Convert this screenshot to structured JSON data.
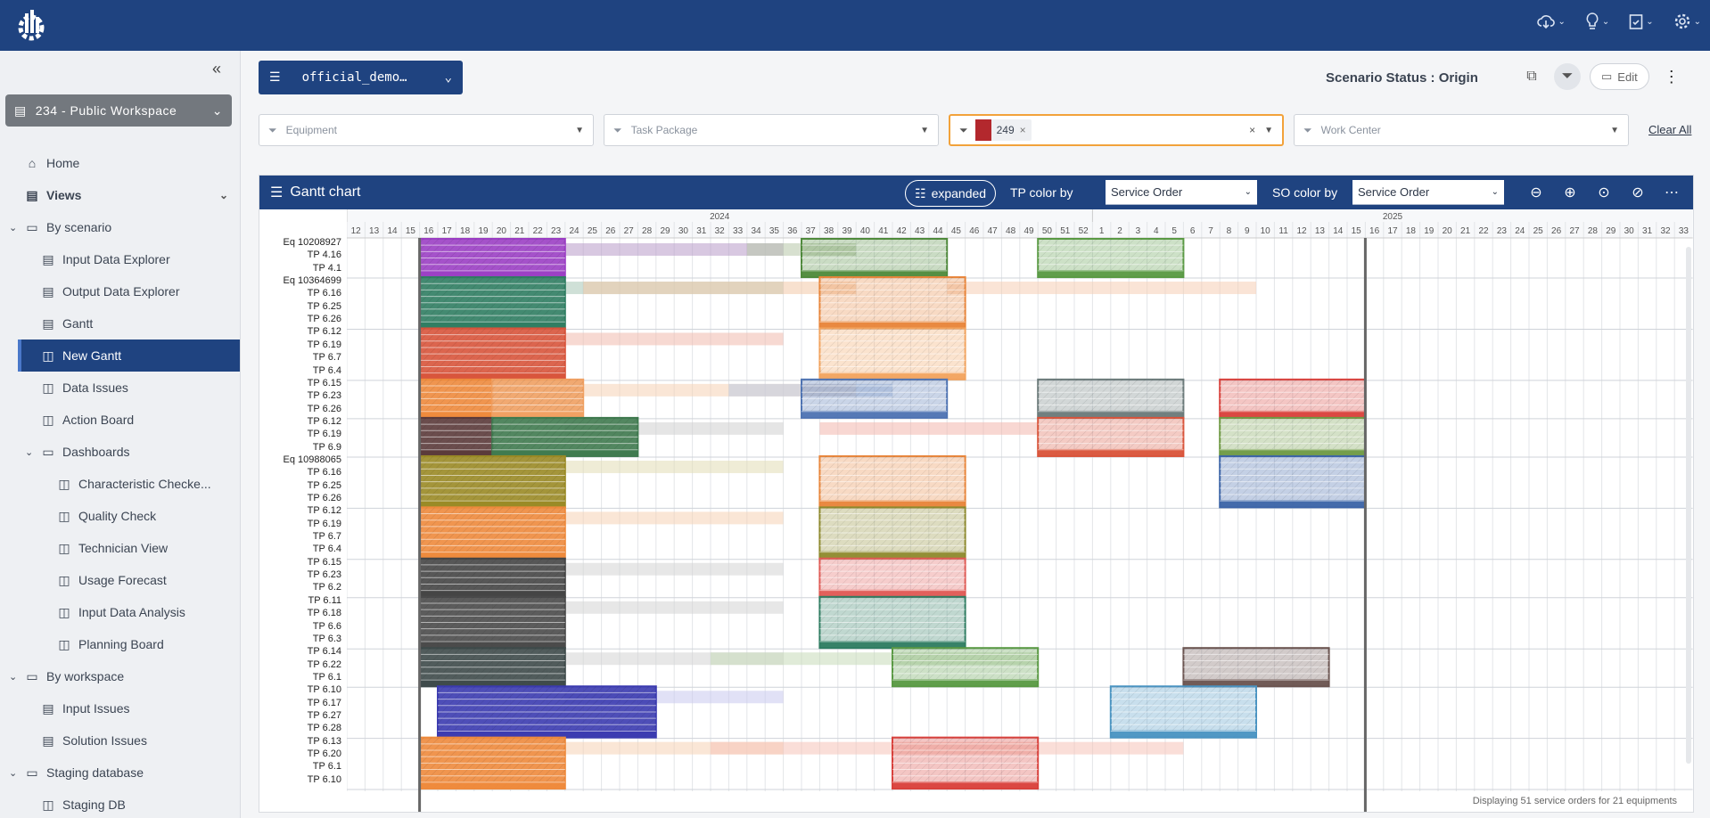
{
  "app": {
    "logo": "gear-chart-logo"
  },
  "topbar": {
    "icons": [
      "cloud-download-icon",
      "lightbulb-icon",
      "clipboard-check-icon",
      "gear-icon"
    ]
  },
  "sidebar": {
    "workspace": "234 - Public Workspace",
    "items": [
      {
        "label": "Home",
        "icon": "home-icon",
        "level": 0,
        "bold": false
      },
      {
        "label": "Views",
        "icon": "layers-icon",
        "level": 0,
        "bold": true,
        "chev": "⌄"
      },
      {
        "label": "By scenario",
        "icon": "folder-icon",
        "level": 0,
        "tree": "⌄"
      },
      {
        "label": "Input Data Explorer",
        "icon": "table-icon",
        "level": 1
      },
      {
        "label": "Output Data Explorer",
        "icon": "table-icon",
        "level": 1
      },
      {
        "label": "Gantt",
        "icon": "table-icon",
        "level": 1
      },
      {
        "label": "New Gantt",
        "icon": "dashboard-icon",
        "level": 1,
        "active": true
      },
      {
        "label": "Data Issues",
        "icon": "dashboard-icon",
        "level": 1
      },
      {
        "label": "Action Board",
        "icon": "dashboard-icon",
        "level": 1
      },
      {
        "label": "Dashboards",
        "icon": "folder-icon",
        "level": 1,
        "tree": "⌄"
      },
      {
        "label": "Characteristic Checke...",
        "icon": "dashboard-icon",
        "level": 2
      },
      {
        "label": "Quality Check",
        "icon": "dashboard-icon",
        "level": 2
      },
      {
        "label": "Technician View",
        "icon": "dashboard-icon",
        "level": 2
      },
      {
        "label": "Usage Forecast",
        "icon": "dashboard-icon",
        "level": 2
      },
      {
        "label": "Input Data Analysis",
        "icon": "dashboard-icon",
        "level": 2
      },
      {
        "label": "Planning Board",
        "icon": "dashboard-icon",
        "level": 2
      },
      {
        "label": "By workspace",
        "icon": "folder-icon",
        "level": 0,
        "tree": "⌄"
      },
      {
        "label": "Input Issues",
        "icon": "table-icon",
        "level": 1
      },
      {
        "label": "Solution Issues",
        "icon": "table-icon",
        "level": 1
      },
      {
        "label": "Staging database",
        "icon": "folder-icon",
        "level": 0,
        "tree": "⌄"
      },
      {
        "label": "Staging DB",
        "icon": "dashboard-icon",
        "level": 1
      }
    ]
  },
  "header": {
    "scenario": "official_demo…",
    "status": "Scenario Status : Origin",
    "edit": "Edit"
  },
  "filters": {
    "equipment": "Equipment",
    "task_package": "Task Package",
    "service_order_chip": "249",
    "work_center": "Work Center",
    "clear_all": "Clear All"
  },
  "gantt": {
    "title": "Gantt chart",
    "expanded": "expanded",
    "tp_color_label": "TP color by",
    "tp_color_value": "Service Order",
    "so_color_label": "SO color by",
    "so_color_value": "Service Order",
    "footer": "Displaying 51 service orders for 21 equipments",
    "years": [
      {
        "label": "2024",
        "first_week": 12,
        "last_week": 52
      },
      {
        "label": "2025",
        "first_week": 1,
        "last_week": 33
      }
    ],
    "week_labels": [
      "12",
      "13",
      "14",
      "15",
      "16",
      "17",
      "18",
      "19",
      "20",
      "21",
      "22",
      "23",
      "24",
      "25",
      "26",
      "27",
      "28",
      "29",
      "30",
      "31",
      "32",
      "33",
      "34",
      "35",
      "36",
      "37",
      "38",
      "39",
      "40",
      "41",
      "42",
      "43",
      "44",
      "45",
      "46",
      "47",
      "48",
      "49",
      "50",
      "51",
      "52",
      "1",
      "2",
      "3",
      "4",
      "5",
      "6",
      "7",
      "8",
      "9",
      "10",
      "11",
      "12",
      "13",
      "14",
      "15",
      "16",
      "17",
      "18",
      "19",
      "20",
      "21",
      "22",
      "23",
      "24",
      "25",
      "26",
      "27",
      "28",
      "29",
      "30",
      "31",
      "32",
      "33"
    ],
    "today_week_index": 4,
    "end_week_index": 56,
    "row_labels": [
      "Eq 10208927",
      "TP 4.16",
      "TP 4.1",
      "Eq 10364699",
      "TP 6.16",
      "TP 6.25",
      "TP 6.26",
      "TP 6.12",
      "TP 6.19",
      "TP 6.7",
      "TP 6.4",
      "TP 6.15",
      "TP 6.23",
      "TP 6.26",
      "TP 6.12",
      "TP 6.19",
      "TP 6.9",
      "Eq 10988065",
      "TP 6.16",
      "TP 6.25",
      "TP 6.26",
      "TP 6.12",
      "TP 6.19",
      "TP 6.7",
      "TP 6.4",
      "TP 6.15",
      "TP 6.23",
      "TP 6.2",
      "TP 6.11",
      "TP 6.18",
      "TP 6.6",
      "TP 6.3",
      "TP 6.14",
      "TP 6.22",
      "TP 6.1",
      "TP 6.10",
      "TP 6.17",
      "TP 6.27",
      "TP 6.28",
      "TP 6.13",
      "TP 6.20",
      "TP 6.1",
      "TP 6.10"
    ],
    "group_separators_after_row": [
      2,
      6,
      10,
      13,
      16,
      20,
      24,
      27,
      31,
      34,
      38
    ],
    "bars": [
      {
        "g": 0,
        "s": 4,
        "e": 12,
        "c": "#9b3fc4"
      },
      {
        "g": 0,
        "s": 25,
        "e": 33,
        "c": "#4f8a3c"
      },
      {
        "g": 0,
        "s": 38,
        "e": 46,
        "c": "#5a9a44"
      },
      {
        "g": 1,
        "s": 4,
        "e": 12,
        "c": "#2f7d62"
      },
      {
        "g": 1,
        "s": 26,
        "e": 34,
        "c": "#e8853a"
      },
      {
        "g": 2,
        "s": 4,
        "e": 12,
        "c": "#d8543b"
      },
      {
        "g": 2,
        "s": 26,
        "e": 34,
        "c": "#f2a35e"
      },
      {
        "g": 3,
        "s": 4,
        "e": 8,
        "c": "#ee8a3c"
      },
      {
        "g": 3,
        "s": 8,
        "e": 13,
        "c": "#f0a062"
      },
      {
        "g": 3,
        "s": 25,
        "e": 33,
        "c": "#4f74b3"
      },
      {
        "g": 3,
        "s": 38,
        "e": 46,
        "c": "#6b7a7a"
      },
      {
        "g": 3,
        "s": 48,
        "e": 56,
        "c": "#d9413c"
      },
      {
        "g": 4,
        "s": 4,
        "e": 8,
        "c": "#5b3a3a"
      },
      {
        "g": 4,
        "s": 8,
        "e": 16,
        "c": "#3f7a4f"
      },
      {
        "g": 4,
        "s": 38,
        "e": 46,
        "c": "#d9543b"
      },
      {
        "g": 4,
        "s": 48,
        "e": 56,
        "c": "#6f9a44"
      },
      {
        "g": 5,
        "s": 4,
        "e": 12,
        "c": "#9a8a25"
      },
      {
        "g": 5,
        "s": 26,
        "e": 34,
        "c": "#e8853a"
      },
      {
        "g": 5,
        "s": 48,
        "e": 56,
        "c": "#3d65a8"
      },
      {
        "g": 6,
        "s": 4,
        "e": 12,
        "c": "#ee8a3c"
      },
      {
        "g": 6,
        "s": 26,
        "e": 34,
        "c": "#8e8a2e"
      },
      {
        "g": 7,
        "s": 4,
        "e": 12,
        "c": "#454545"
      },
      {
        "g": 7,
        "s": 26,
        "e": 34,
        "c": "#e05a55"
      },
      {
        "g": 8,
        "s": 4,
        "e": 12,
        "c": "#4a4a4a"
      },
      {
        "g": 8,
        "s": 26,
        "e": 34,
        "c": "#2f7d62"
      },
      {
        "g": 9,
        "s": 4,
        "e": 12,
        "c": "#3e4a4a"
      },
      {
        "g": 9,
        "s": 30,
        "e": 38,
        "c": "#5a9a44"
      },
      {
        "g": 9,
        "s": 46,
        "e": 54,
        "c": "#6b5450"
      },
      {
        "g": 10,
        "s": 5,
        "e": 17,
        "c": "#3b3bb0"
      },
      {
        "g": 10,
        "s": 42,
        "e": 50,
        "c": "#4a94c2"
      },
      {
        "g": 11,
        "s": 4,
        "e": 12,
        "c": "#ee8a3c"
      },
      {
        "g": 11,
        "s": 30,
        "e": 38,
        "c": "#d9413c"
      }
    ]
  },
  "colors": {
    "brand": "#1f4380",
    "accent": "#f2a23a",
    "active_nav": "#1f4380"
  }
}
